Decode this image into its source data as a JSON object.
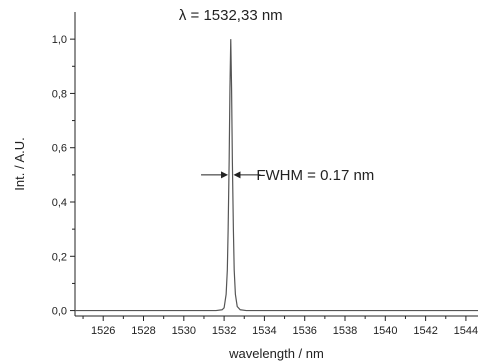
{
  "chart_data": {
    "type": "line",
    "xlabel": "wavelength / nm",
    "ylabel": "Int. / A.U.",
    "xlim": [
      1524.6,
      1544.6
    ],
    "ylim": [
      -0.02,
      1.1
    ],
    "x_ticks": [
      1526,
      1528,
      1530,
      1532,
      1534,
      1536,
      1538,
      1540,
      1542,
      1544
    ],
    "x_tick_labels": [
      "1526",
      "1528",
      "1530",
      "1532",
      "1534",
      "1536",
      "1538",
      "1540",
      "1542",
      "1544"
    ],
    "y_ticks": [
      0.0,
      0.2,
      0.4,
      0.6,
      0.8,
      1.0
    ],
    "y_tick_labels": [
      "0,0",
      "0,2",
      "0,4",
      "0,6",
      "0,8",
      "1,0"
    ],
    "grid": false,
    "series": [
      {
        "peak_wavelength": 1532.33,
        "fwhm": 0.17,
        "peak_intensity": 1.0,
        "baseline": 0.0,
        "x": [
          1524.6,
          1530.0,
          1531.6,
          1531.9,
          1532.0,
          1532.1,
          1532.16,
          1532.2,
          1532.25,
          1532.29,
          1532.33,
          1532.37,
          1532.41,
          1532.46,
          1532.5,
          1532.56,
          1532.65,
          1532.8,
          1533.1,
          1535.0,
          1544.6
        ],
        "y": [
          0.0,
          0.0,
          0.0,
          0.003,
          0.01,
          0.06,
          0.15,
          0.3,
          0.55,
          0.82,
          1.0,
          0.82,
          0.55,
          0.3,
          0.15,
          0.06,
          0.015,
          0.003,
          0.0,
          0.0,
          0.0
        ]
      }
    ],
    "annotations": [
      {
        "text": "λ = 1532,33 nm",
        "x": 1532.33,
        "y": 1.07
      },
      {
        "text": "FWHM = 0.17 nm",
        "x": 1533.6,
        "y": 0.5
      }
    ]
  }
}
